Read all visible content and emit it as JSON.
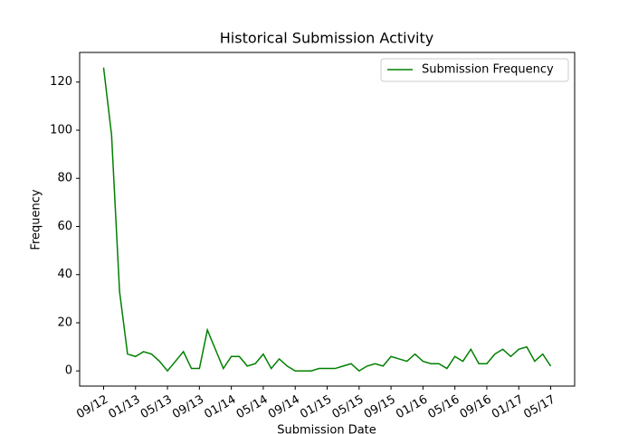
{
  "chart_data": {
    "type": "line",
    "title": "Historical Submission Activity",
    "x_label": "Submission Date",
    "y_label": "Frequency",
    "x": [
      "2012-09",
      "2012-10",
      "2012-11",
      "2012-12",
      "2013-01",
      "2013-02",
      "2013-03",
      "2013-04",
      "2013-05",
      "2013-06",
      "2013-07",
      "2013-08",
      "2013-09",
      "2013-10",
      "2013-11",
      "2013-12",
      "2014-01",
      "2014-02",
      "2014-03",
      "2014-04",
      "2014-05",
      "2014-06",
      "2014-07",
      "2014-08",
      "2014-09",
      "2014-10",
      "2014-11",
      "2014-12",
      "2015-01",
      "2015-02",
      "2015-03",
      "2015-04",
      "2015-05",
      "2015-06",
      "2015-07",
      "2015-08",
      "2015-09",
      "2015-10",
      "2015-11",
      "2015-12",
      "2016-01",
      "2016-02",
      "2016-03",
      "2016-04",
      "2016-05",
      "2016-06",
      "2016-07",
      "2016-08",
      "2016-09",
      "2016-10",
      "2016-11",
      "2016-12",
      "2017-01",
      "2017-02",
      "2017-03",
      "2017-04",
      "2017-05"
    ],
    "series": [
      {
        "name": "Submission Frequency",
        "color": "#008000",
        "values": [
          126,
          98,
          33,
          7,
          6,
          8,
          7,
          4,
          0,
          4,
          8,
          1,
          1,
          17,
          9,
          1,
          6,
          6,
          2,
          3,
          7,
          1,
          5,
          2,
          0,
          0,
          0,
          1,
          1,
          1,
          2,
          3,
          0,
          2,
          3,
          2,
          6,
          5,
          4,
          7,
          4,
          3,
          3,
          1,
          6,
          4,
          9,
          3,
          3,
          7,
          9,
          6,
          9,
          10,
          4,
          7,
          2
        ]
      }
    ],
    "xlim": [
      "2012-06",
      "2017-08"
    ],
    "xticks": [
      {
        "value": "2012-09",
        "label": "09/12"
      },
      {
        "value": "2013-01",
        "label": "01/13"
      },
      {
        "value": "2013-05",
        "label": "05/13"
      },
      {
        "value": "2013-09",
        "label": "09/13"
      },
      {
        "value": "2014-01",
        "label": "01/14"
      },
      {
        "value": "2014-05",
        "label": "05/14"
      },
      {
        "value": "2014-09",
        "label": "09/14"
      },
      {
        "value": "2015-01",
        "label": "01/15"
      },
      {
        "value": "2015-05",
        "label": "05/15"
      },
      {
        "value": "2015-09",
        "label": "09/15"
      },
      {
        "value": "2016-01",
        "label": "01/16"
      },
      {
        "value": "2016-05",
        "label": "05/16"
      },
      {
        "value": "2016-09",
        "label": "09/16"
      },
      {
        "value": "2017-01",
        "label": "01/17"
      },
      {
        "value": "2017-05",
        "label": "05/17"
      }
    ],
    "ylim": [
      -6.3,
      132.3
    ],
    "yticks": [
      0,
      20,
      40,
      60,
      80,
      100,
      120
    ],
    "legend": "upper right",
    "grid": false
  }
}
